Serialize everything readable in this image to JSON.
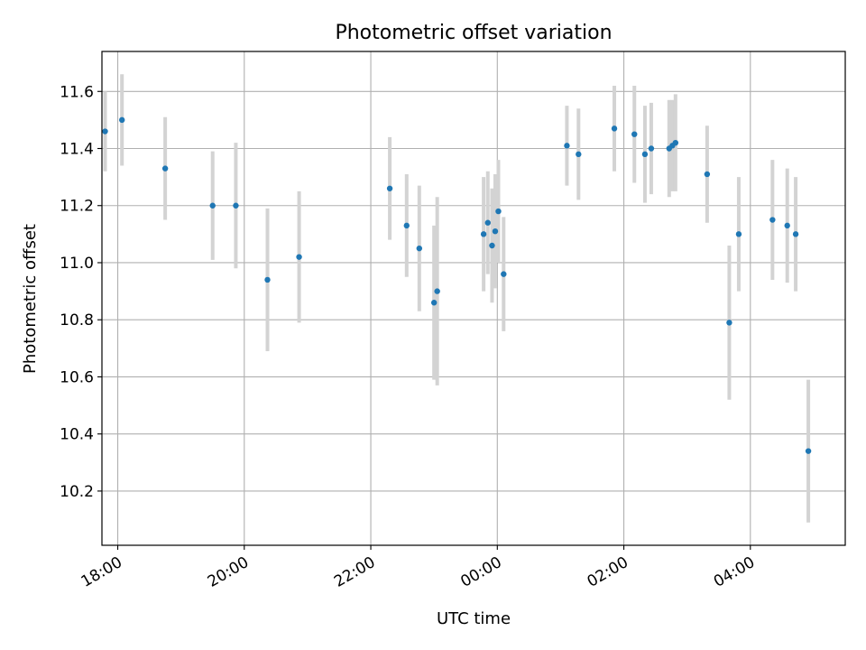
{
  "chart_data": {
    "type": "scatter",
    "title": "Photometric offset variation",
    "xlabel": "UTC time",
    "ylabel": "Photometric offset",
    "x_type": "time",
    "xlim": [
      "17:45",
      "05:30"
    ],
    "ylim": [
      10.01,
      11.74
    ],
    "x_ticks": [
      "18:00",
      "20:00",
      "22:00",
      "00:00",
      "02:00",
      "04:00"
    ],
    "y_ticks": [
      "10.2",
      "10.4",
      "10.6",
      "10.8",
      "11.0",
      "11.2",
      "11.4",
      "11.6"
    ],
    "grid": true,
    "point_color": "#1f77b4",
    "errorbar_color": "#d3d3d3",
    "series": [
      {
        "points": [
          {
            "x": "17:48",
            "y": 11.46,
            "err": 0.14
          },
          {
            "x": "18:04",
            "y": 11.5,
            "err": 0.16
          },
          {
            "x": "18:45",
            "y": 11.33,
            "err": 0.18
          },
          {
            "x": "19:30",
            "y": 11.2,
            "err": 0.19
          },
          {
            "x": "19:52",
            "y": 11.2,
            "err": 0.22
          },
          {
            "x": "20:22",
            "y": 10.94,
            "err": 0.25
          },
          {
            "x": "20:52",
            "y": 11.02,
            "err": 0.23
          },
          {
            "x": "22:18",
            "y": 11.26,
            "err": 0.18
          },
          {
            "x": "22:34",
            "y": 11.13,
            "err": 0.18
          },
          {
            "x": "22:46",
            "y": 11.05,
            "err": 0.22
          },
          {
            "x": "23:00",
            "y": 10.86,
            "err": 0.27
          },
          {
            "x": "23:03",
            "y": 10.9,
            "err": 0.33
          },
          {
            "x": "23:47",
            "y": 11.1,
            "err": 0.2
          },
          {
            "x": "23:51",
            "y": 11.14,
            "err": 0.18
          },
          {
            "x": "23:55",
            "y": 11.06,
            "err": 0.2
          },
          {
            "x": "23:58",
            "y": 11.11,
            "err": 0.2
          },
          {
            "x": "00:01",
            "y": 11.18,
            "err": 0.18
          },
          {
            "x": "00:06",
            "y": 10.96,
            "err": 0.2
          },
          {
            "x": "01:06",
            "y": 11.41,
            "err": 0.14
          },
          {
            "x": "01:17",
            "y": 11.38,
            "err": 0.16
          },
          {
            "x": "01:51",
            "y": 11.47,
            "err": 0.15
          },
          {
            "x": "02:10",
            "y": 11.45,
            "err": 0.17
          },
          {
            "x": "02:20",
            "y": 11.38,
            "err": 0.17
          },
          {
            "x": "02:26",
            "y": 11.4,
            "err": 0.16
          },
          {
            "x": "02:43",
            "y": 11.4,
            "err": 0.17
          },
          {
            "x": "02:46",
            "y": 11.41,
            "err": 0.16
          },
          {
            "x": "02:49",
            "y": 11.42,
            "err": 0.17
          },
          {
            "x": "03:19",
            "y": 11.31,
            "err": 0.17
          },
          {
            "x": "03:40",
            "y": 10.79,
            "err": 0.27
          },
          {
            "x": "03:49",
            "y": 11.1,
            "err": 0.2
          },
          {
            "x": "04:21",
            "y": 11.15,
            "err": 0.21
          },
          {
            "x": "04:35",
            "y": 11.13,
            "err": 0.2
          },
          {
            "x": "04:43",
            "y": 11.1,
            "err": 0.2
          },
          {
            "x": "04:55",
            "y": 10.34,
            "err": 0.25
          }
        ]
      }
    ]
  }
}
